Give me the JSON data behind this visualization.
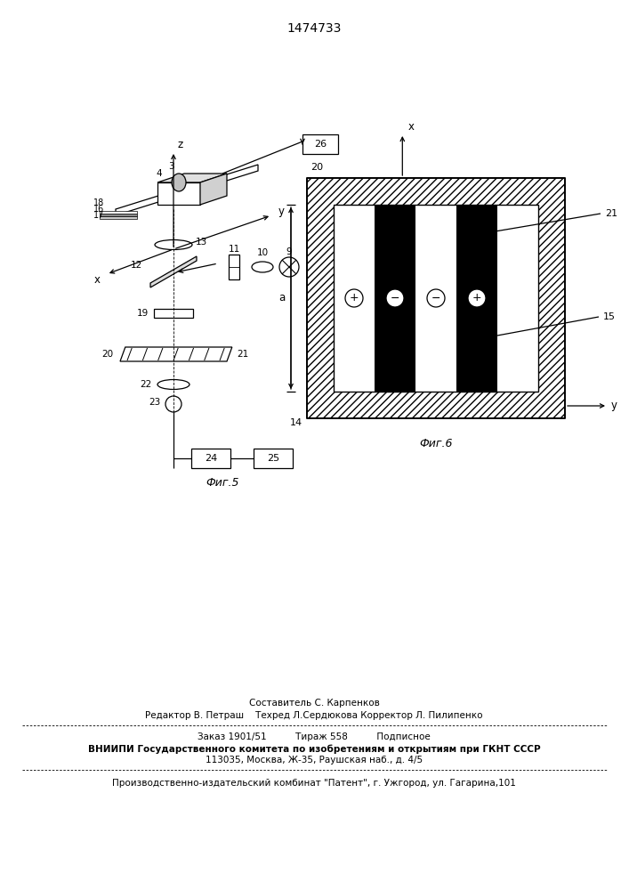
{
  "title": "1474733",
  "fig5_label": "Фиг.5",
  "fig6_label": "Фиг.6",
  "footer_lines": [
    "Составитель С. Карпенков",
    "Редактор В. Петраш    Техред Л.Сердюкова Корректор Л. Пилипенко",
    "Заказ 1901/51          Тираж 558          Подписное",
    "ВНИИПИ Государственного комитета по изобретениям и открытиям при ГКНТ СССР",
    "113035, Москва, Ж-35, Раушская наб., д. 4/5",
    "Производственно-издательский комбинат \"Патент\", г. Ужгород, ул. Гагарина,101"
  ],
  "bg_color": "#ffffff"
}
